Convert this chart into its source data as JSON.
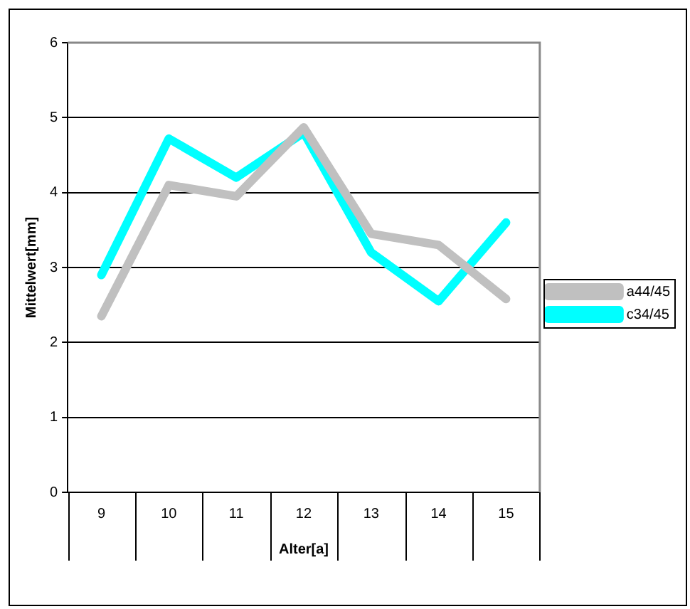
{
  "chart_data": {
    "type": "line",
    "xlabel": "Alter[a]",
    "ylabel": "Mittelwert[mm]",
    "categories": [
      "9",
      "10",
      "11",
      "12",
      "13",
      "14",
      "15"
    ],
    "series": [
      {
        "name": "a44/45",
        "color": "#c0c0c0",
        "values": [
          2.35,
          4.1,
          3.95,
          4.87,
          3.45,
          3.3,
          2.58
        ]
      },
      {
        "name": "c34/45",
        "color": "#00ffff",
        "values": [
          2.9,
          4.72,
          4.2,
          4.8,
          3.2,
          2.55,
          3.6
        ]
      }
    ],
    "ylim": [
      0,
      6
    ],
    "yticks": [
      0,
      1,
      2,
      3,
      4,
      5,
      6
    ],
    "grid": "y",
    "legend": "right",
    "marker": "none",
    "line_style": "solid"
  }
}
